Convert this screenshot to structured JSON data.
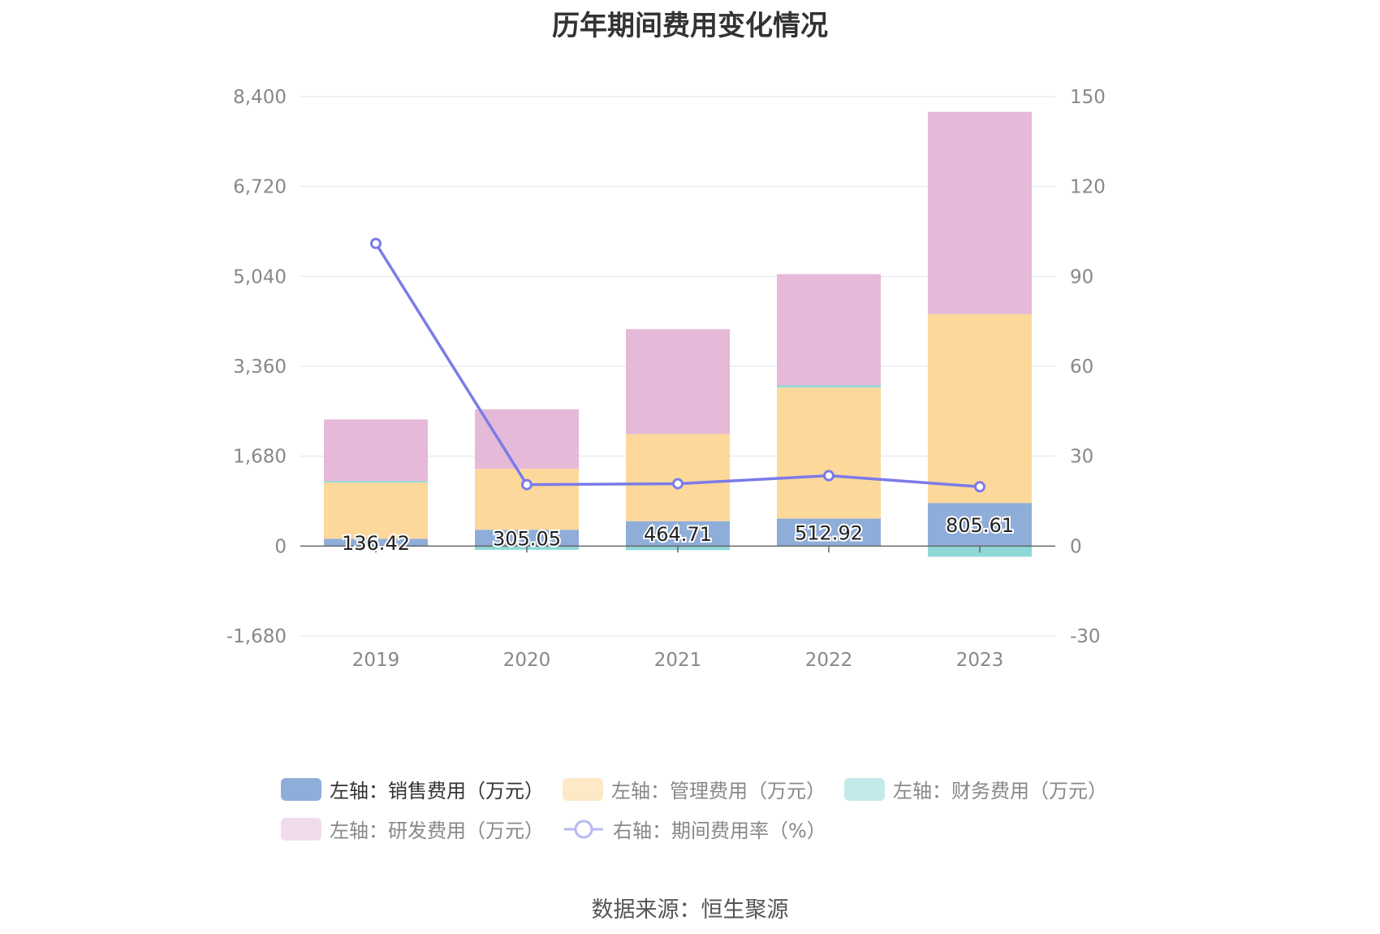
{
  "title": "历年期间费用变化情况",
  "source": "数据来源：恒生聚源",
  "colors": {
    "sales": "#8fadd9",
    "admin": "#fdd89b",
    "finance": "#8fd8d8",
    "rnd": "#e5b9d8",
    "rate": "#7b7be8",
    "grid": "#dfe3f0",
    "axis_text": "#888888"
  },
  "legend": [
    {
      "label": "左轴：销售费用（万元）",
      "color": "#8fadd9",
      "icon": "rect",
      "active": true
    },
    {
      "label": "左轴：管理费用（万元）",
      "color": "#fde9c6",
      "icon": "rect",
      "active": false
    },
    {
      "label": "左轴：财务费用（万元）",
      "color": "#c3eaea",
      "icon": "rect",
      "active": false
    },
    {
      "label": "左轴：研发费用（万元）",
      "color": "#f1dcec",
      "icon": "rect",
      "active": false
    },
    {
      "label": "右轴：期间费用率（%）",
      "color": "#b9b9f0",
      "icon": "line-circle",
      "active": false
    }
  ],
  "chart_data": {
    "type": "bar",
    "stacked": true,
    "title": "历年期间费用变化情况",
    "categories": [
      "2019",
      "2020",
      "2021",
      "2022",
      "2023"
    ],
    "left_axis": {
      "ylim": [
        -1680,
        8400
      ],
      "ticks": [
        "8,400",
        "6,720",
        "5,040",
        "3,360",
        "1,680",
        "0",
        "-1,680"
      ]
    },
    "right_axis": {
      "ylim": [
        -30,
        150
      ],
      "ticks": [
        "150",
        "120",
        "90",
        "60",
        "30",
        "0",
        "-30"
      ]
    },
    "series": [
      {
        "name": "左轴：销售费用（万元）",
        "axis": "left",
        "values": [
          136.42,
          305.05,
          464.71,
          512.92,
          805.61
        ],
        "data_labels": [
          "136.42",
          "305.05",
          "464.71",
          "512.92",
          "805.61"
        ]
      },
      {
        "name": "左轴：管理费用（万元）",
        "axis": "left",
        "values": [
          1050,
          1140,
          1630,
          2450,
          3530
        ]
      },
      {
        "name": "左轴：财务费用（万元）",
        "axis": "left",
        "values": [
          30,
          -70,
          -75,
          40,
          -200
        ]
      },
      {
        "name": "左轴：研发费用（万元）",
        "axis": "left",
        "values": [
          1150,
          1110,
          1960,
          2080,
          3780
        ]
      },
      {
        "name": "右轴：期间费用率（%）",
        "axis": "right",
        "type": "line",
        "values": [
          101,
          20.5,
          20.8,
          23.5,
          19.8
        ]
      }
    ],
    "grid": true,
    "legend_position": "bottom"
  }
}
